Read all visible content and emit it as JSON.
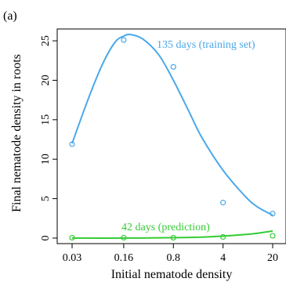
{
  "chart_data": {
    "type": "line",
    "panel_label": "(a)",
    "xlabel": "Initial nematode density",
    "ylabel": "Final nematode density in roots",
    "x_scale": "log",
    "x_ticks": [
      "0.03",
      "0.16",
      "0.8",
      "4",
      "20"
    ],
    "xlim": [
      0.03,
      20
    ],
    "ylim": [
      -0.7,
      26.5
    ],
    "y_ticks": [
      0,
      5,
      10,
      15,
      20,
      25
    ],
    "grid": false,
    "series": [
      {
        "name": "135 days (training set)",
        "color": "#4aa8e8",
        "points": {
          "x": [
            0.03,
            0.16,
            0.8,
            4,
            20
          ],
          "y": [
            11.9,
            25.1,
            21.7,
            4.5,
            3.1
          ]
        },
        "curve": {
          "x": [
            0.03,
            0.05,
            0.08,
            0.12,
            0.16,
            0.2,
            0.3,
            0.5,
            0.8,
            1.3,
            2,
            4,
            8,
            12,
            20
          ],
          "y": [
            12.0,
            17.5,
            22.0,
            24.8,
            25.6,
            25.8,
            25.2,
            23.2,
            20.0,
            16.2,
            12.8,
            8.6,
            5.4,
            4.0,
            2.9
          ]
        }
      },
      {
        "name": "42 days (prediction)",
        "color": "#33cc33",
        "points": {
          "x": [
            0.03,
            0.16,
            0.8,
            4,
            20
          ],
          "y": [
            0.05,
            0.05,
            0.05,
            0.15,
            0.3
          ]
        },
        "curve": {
          "x": [
            0.03,
            0.16,
            0.8,
            2,
            4,
            8,
            12,
            20
          ],
          "y": [
            0.0,
            0.0,
            0.05,
            0.12,
            0.25,
            0.45,
            0.6,
            0.9
          ]
        }
      }
    ]
  }
}
